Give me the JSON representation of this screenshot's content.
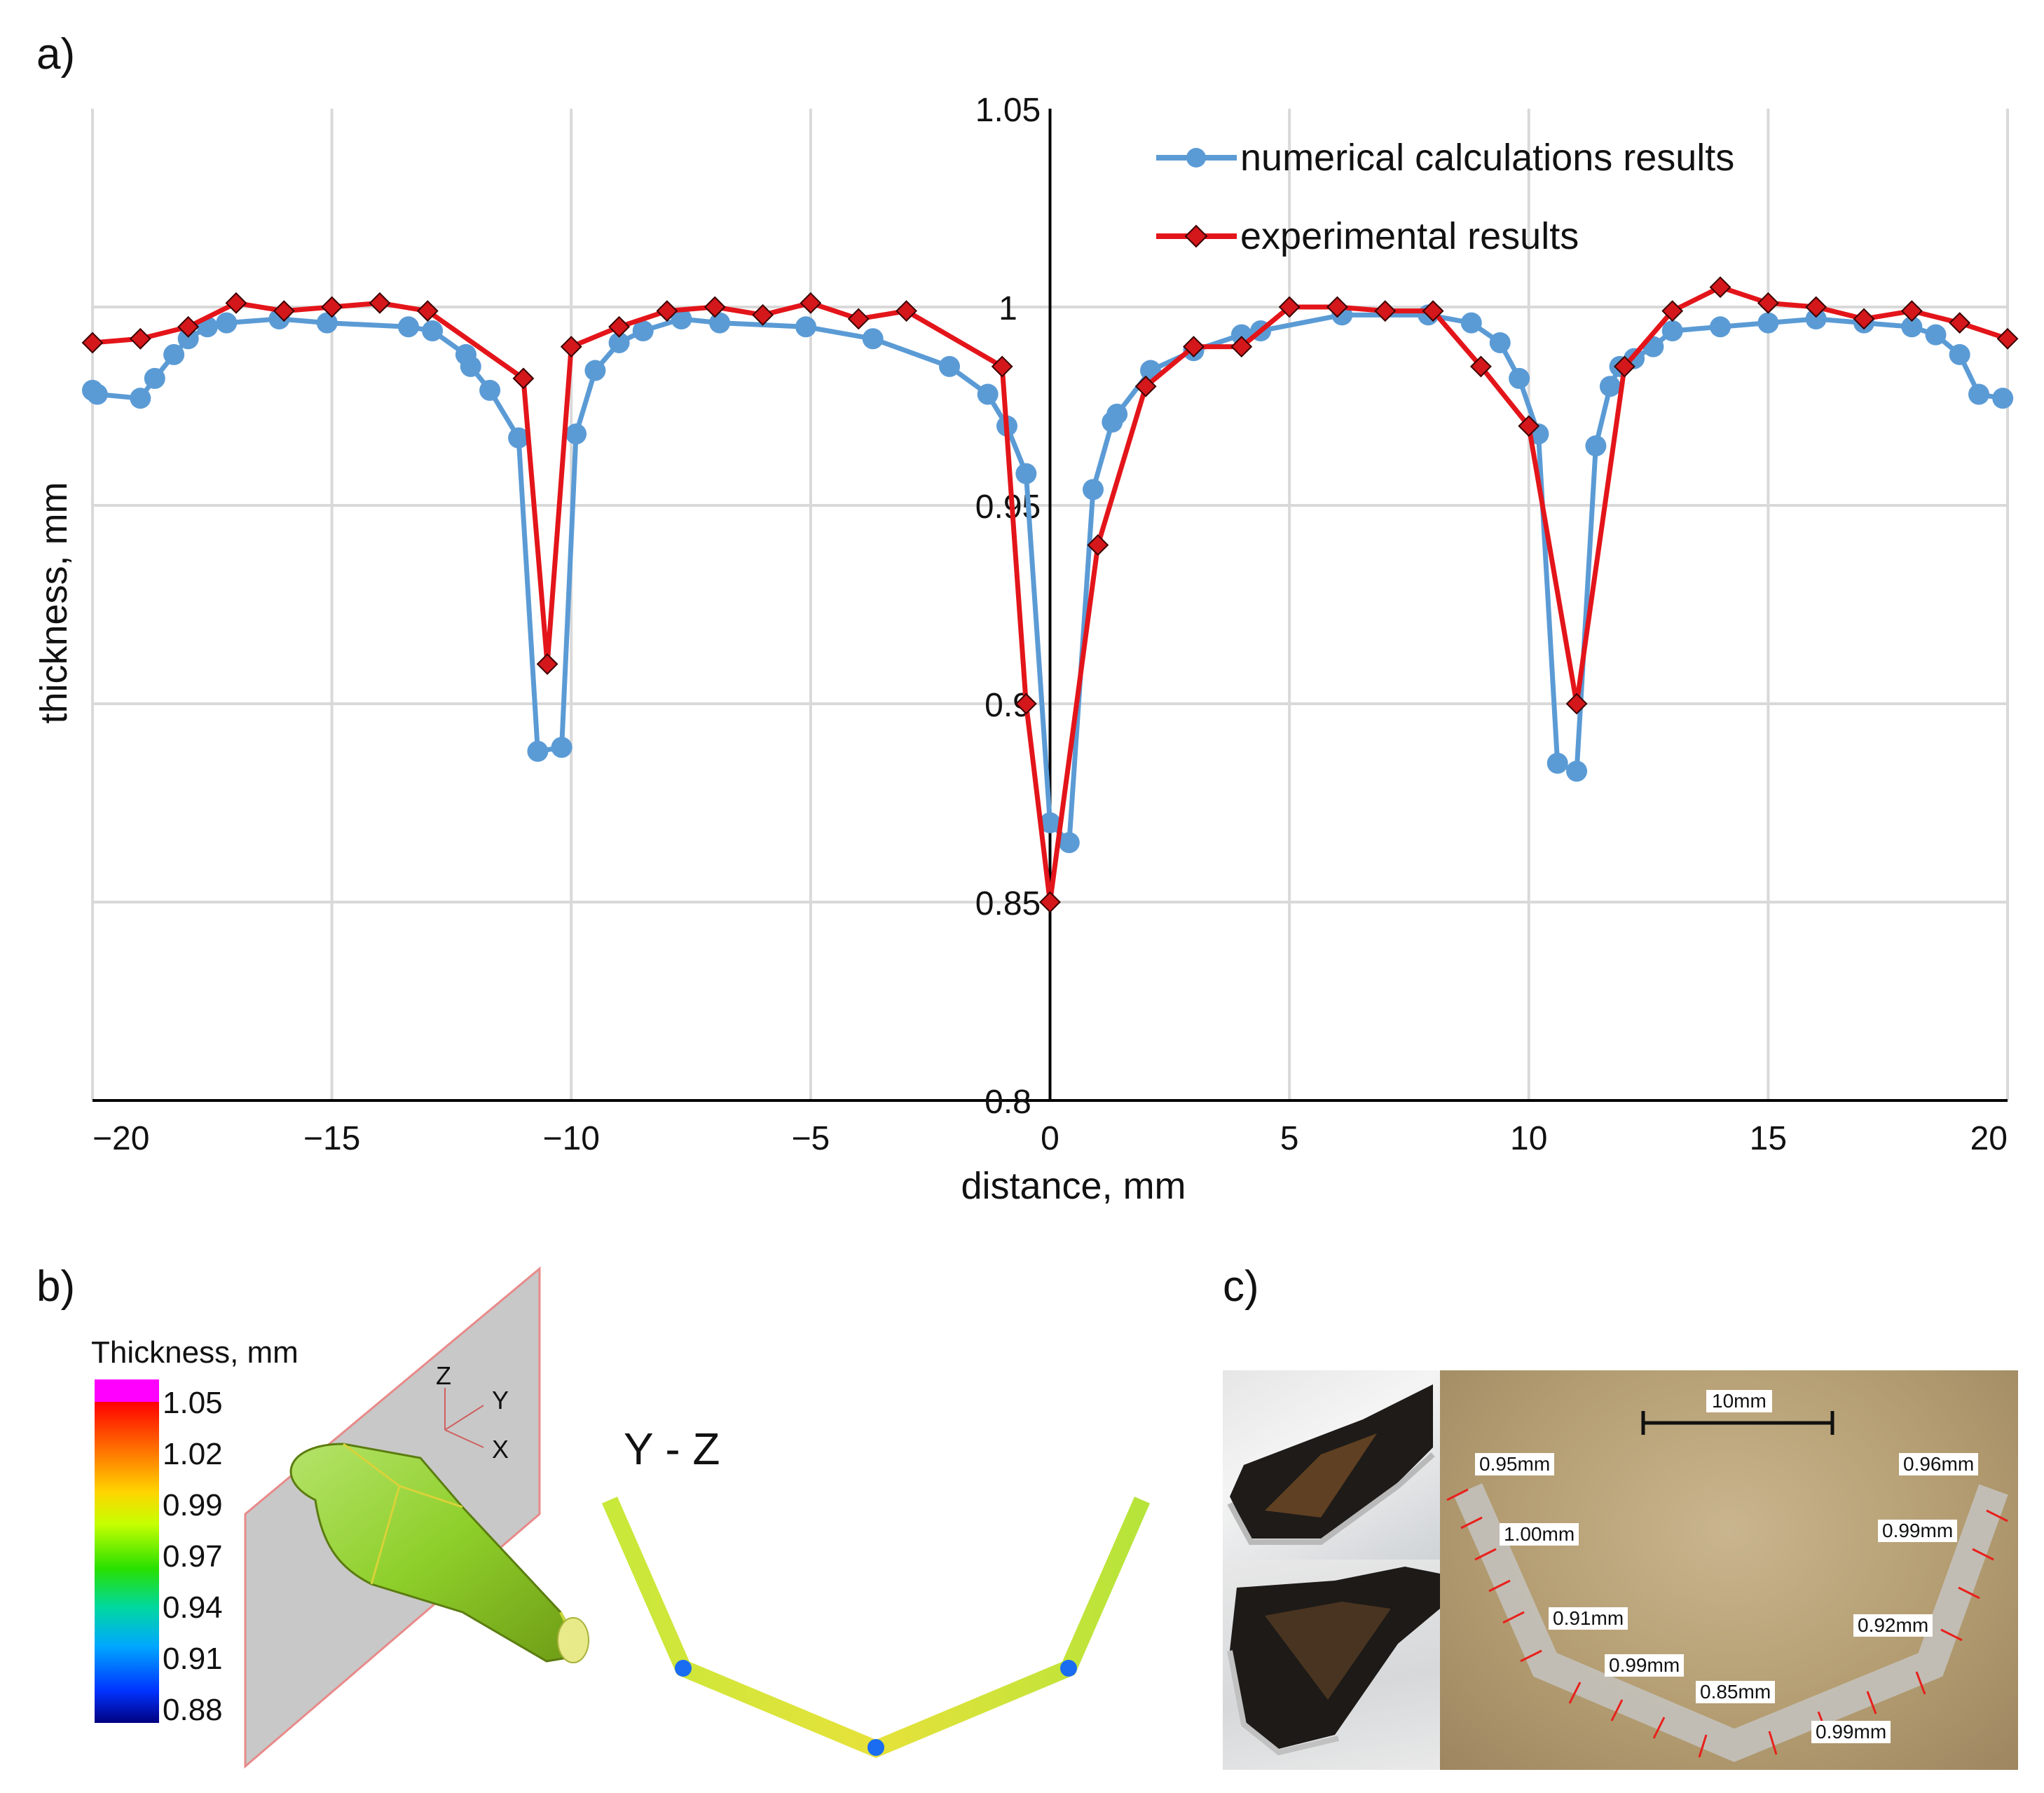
{
  "panel_labels": {
    "a": "a)",
    "b": "b)",
    "c": "c)"
  },
  "chart_data": {
    "type": "line",
    "title": "",
    "xlabel": "distance, mm",
    "ylabel": "thickness, mm",
    "xlim": [
      -20,
      20
    ],
    "ylim": [
      0.8,
      1.05
    ],
    "x_ticks": [
      -20,
      -15,
      -10,
      -5,
      0,
      5,
      10,
      15,
      20
    ],
    "x_tick_labels": [
      "−20",
      "−15",
      "−10",
      "−5",
      "0",
      "5",
      "10",
      "15",
      "20"
    ],
    "y_ticks": [
      0.8,
      0.85,
      0.9,
      0.95,
      1,
      1.05
    ],
    "y_tick_labels": [
      "0.8",
      "0.85",
      "0.9",
      "0.95",
      "1",
      "1.05"
    ],
    "grid": true,
    "legend_position": "top-right",
    "series": [
      {
        "name": "numerical calculations results",
        "color": "#5b9bd5",
        "marker": "circle",
        "x": [
          -20,
          -19.9,
          -19,
          -18.7,
          -18.3,
          -18,
          -17.6,
          -17.2,
          -16.1,
          -15.1,
          -13.4,
          -12.9,
          -12.2,
          -12.1,
          -11.7,
          -11.1,
          -10.7,
          -10.2,
          -9.9,
          -9.5,
          -9.0,
          -8.5,
          -7.7,
          -6.9,
          -5.1,
          -3.7,
          -2.1,
          -1.3,
          -0.9,
          -0.5,
          0.0,
          0.4,
          0.9,
          1.3,
          1.4,
          2.1,
          3.0,
          4.0,
          4.4,
          6.1,
          7.9,
          8.8,
          9.4,
          9.8,
          10.2,
          10.6,
          11.0,
          11.4,
          11.7,
          11.9,
          12.2,
          12.6,
          13.0,
          14.0,
          15.0,
          16.0,
          17.0,
          18.0,
          18.5,
          19.0,
          19.4,
          19.9
        ],
        "y": [
          0.979,
          0.978,
          0.977,
          0.982,
          0.988,
          0.992,
          0.995,
          0.996,
          0.997,
          0.996,
          0.995,
          0.994,
          0.988,
          0.985,
          0.979,
          0.967,
          0.888,
          0.889,
          0.968,
          0.984,
          0.991,
          0.994,
          0.997,
          0.996,
          0.995,
          0.992,
          0.985,
          0.978,
          0.97,
          0.958,
          0.87,
          0.865,
          0.954,
          0.971,
          0.973,
          0.984,
          0.989,
          0.993,
          0.994,
          0.998,
          0.998,
          0.996,
          0.991,
          0.982,
          0.968,
          0.885,
          0.883,
          0.965,
          0.98,
          0.985,
          0.987,
          0.99,
          0.994,
          0.995,
          0.996,
          0.997,
          0.996,
          0.995,
          0.993,
          0.988,
          0.978,
          0.977
        ]
      },
      {
        "name": "experimental results",
        "color": "#e3151a",
        "marker": "diamond",
        "x": [
          -20,
          -19,
          -18,
          -17,
          -16,
          -15,
          -14,
          -13,
          -11,
          -10.5,
          -10,
          -9,
          -8,
          -7,
          -6,
          -5,
          -4,
          -3,
          -1,
          -0.5,
          0,
          1,
          2,
          3,
          4,
          5,
          6,
          7,
          8,
          9,
          10,
          11,
          12,
          13,
          14,
          15,
          16,
          17,
          18,
          19,
          20
        ],
        "y": [
          0.991,
          0.992,
          0.995,
          1.001,
          0.999,
          1,
          1.001,
          0.999,
          0.982,
          0.91,
          0.99,
          0.995,
          0.999,
          1,
          0.998,
          1.001,
          0.997,
          0.999,
          0.985,
          0.9,
          0.85,
          0.94,
          0.98,
          0.99,
          0.99,
          1,
          1,
          0.999,
          0.999,
          0.985,
          0.97,
          0.9,
          0.985,
          0.999,
          1.005,
          1.001,
          1,
          0.997,
          0.999,
          0.996,
          0.992
        ]
      }
    ]
  },
  "panel_b": {
    "legend_title": "Thickness, mm",
    "legend_values": [
      "1.05",
      "1.02",
      "0.99",
      "0.97",
      "0.94",
      "0.91",
      "0.88"
    ],
    "axis_labels": {
      "z": "Z",
      "y": "Y",
      "x": "X"
    },
    "section_title": "Y - Z"
  },
  "panel_c": {
    "scale_label": "10mm",
    "measurements": [
      "0.95mm",
      "1.00mm",
      "0.91mm",
      "0.99mm",
      "0.85mm",
      "0.99mm",
      "0.92mm",
      "0.99mm",
      "0.96mm"
    ]
  }
}
